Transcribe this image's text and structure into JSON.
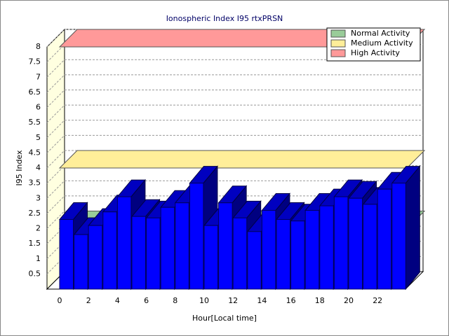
{
  "chart_data": {
    "type": "bar3d",
    "title": "Ionospheric Index I95 rtxPRSN",
    "x_label": "Hour[Local time]",
    "y_label": "I95 Index",
    "categories": [
      0,
      null,
      2,
      null,
      4,
      null,
      6,
      null,
      8,
      null,
      10,
      null,
      12,
      null,
      14,
      null,
      16,
      null,
      18,
      null,
      20,
      null,
      22,
      null
    ],
    "values": [
      2.3,
      1.8,
      2.1,
      2.55,
      3.05,
      2.4,
      2.35,
      2.7,
      2.85,
      3.5,
      2.1,
      2.85,
      2.35,
      1.9,
      2.6,
      2.3,
      2.25,
      2.6,
      2.75,
      3.05,
      3.0,
      2.8,
      3.3,
      3.5
    ],
    "color": "#0000ff",
    "ylim": [
      0,
      8
    ],
    "yticks": [
      0.5,
      1,
      1.5,
      2,
      2.5,
      3,
      3.5,
      4,
      4.5,
      5,
      5.5,
      6,
      6.5,
      7,
      7.5,
      8
    ],
    "grid": true,
    "bands": [
      {
        "name": "Normal Activity",
        "color": "#99cc99",
        "value": 2
      },
      {
        "name": "Medium Activity",
        "color": "#ffee99",
        "value": 4
      },
      {
        "name": "High Activity",
        "color": "#ff9999",
        "value": 8
      }
    ],
    "legend": "upper right"
  }
}
